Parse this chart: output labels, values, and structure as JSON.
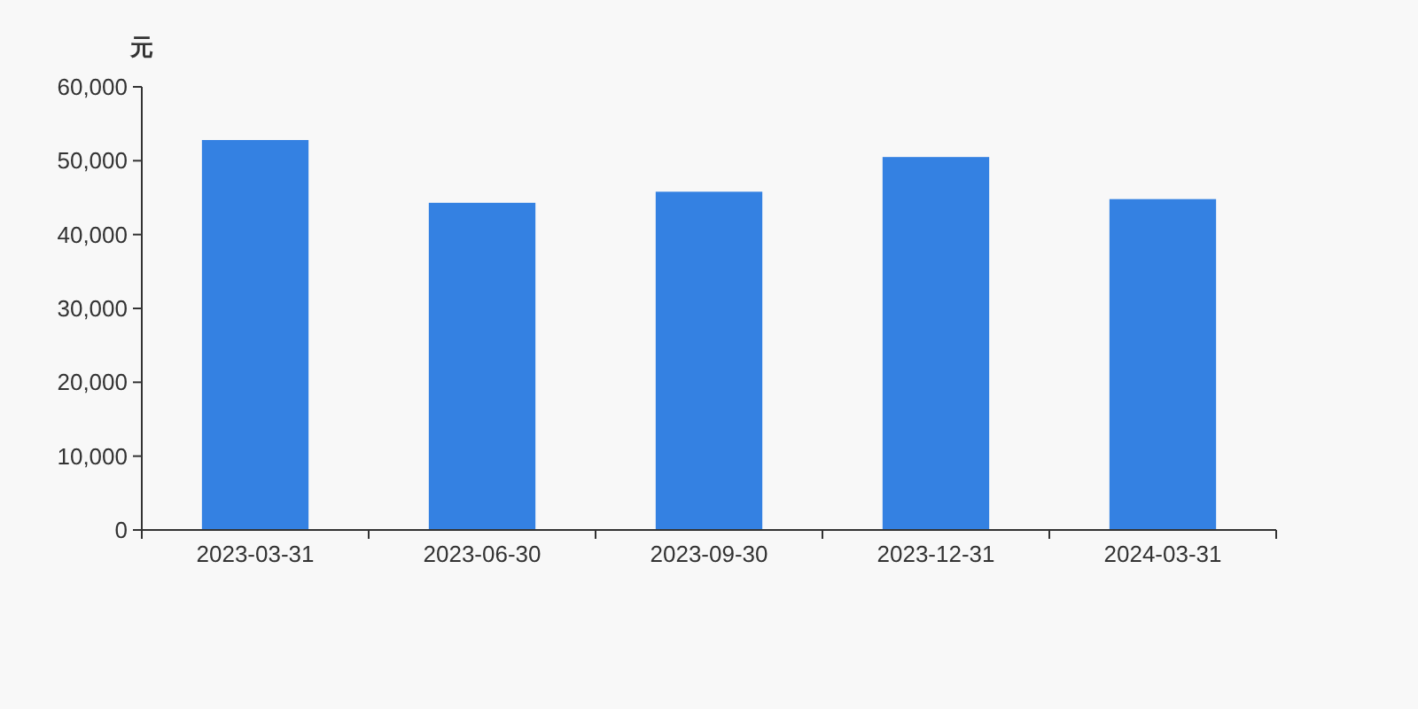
{
  "chart_data": {
    "type": "bar",
    "ylabel": "元",
    "categories": [
      "2023-03-31",
      "2023-06-30",
      "2023-09-30",
      "2023-12-31",
      "2024-03-31"
    ],
    "values": [
      52800,
      44300,
      45800,
      50500,
      44800
    ],
    "color": "#3481e2",
    "ylim": [
      0,
      60000
    ],
    "yticks": [
      {
        "value": 0,
        "label": "0"
      },
      {
        "value": 10000,
        "label": "10,000"
      },
      {
        "value": 20000,
        "label": "20,000"
      },
      {
        "value": 30000,
        "label": "30,000"
      },
      {
        "value": 40000,
        "label": "40,000"
      },
      {
        "value": 50000,
        "label": "50,000"
      },
      {
        "value": 60000,
        "label": "60,000"
      }
    ],
    "grid": false
  }
}
